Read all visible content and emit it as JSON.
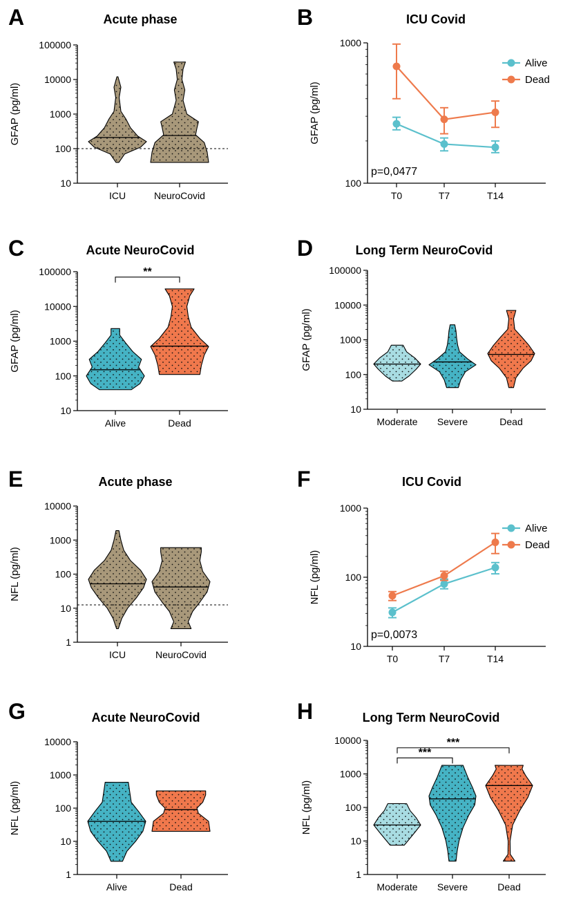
{
  "colors": {
    "tan": "#A8987A",
    "teal": "#45B3C4",
    "light_teal": "#A8DCE2",
    "orange": "#F0784C",
    "line_teal": "#5BC0CC",
    "line_orange": "#EE7A4C"
  },
  "chart_data": [
    {
      "panel": "A",
      "type": "violin",
      "title": "Acute phase",
      "ylabel": "GFAP (pg/ml)",
      "yscale": "log",
      "ylim": [
        10,
        100000
      ],
      "yticks": [
        "10",
        "100",
        "1000",
        "10000",
        "100000"
      ],
      "categories": [
        "ICU",
        "NeuroCovid"
      ],
      "reference_line": 100,
      "groups": [
        {
          "name": "ICU",
          "color": "tan",
          "min": 40,
          "max": 12000,
          "median": 210,
          "profile": [
            [
              40,
              0.05
            ],
            [
              70,
              0.25
            ],
            [
              110,
              0.8
            ],
            [
              160,
              1.0
            ],
            [
              230,
              0.7
            ],
            [
              400,
              0.45
            ],
            [
              700,
              0.3
            ],
            [
              1200,
              0.12
            ],
            [
              3000,
              0.06
            ],
            [
              6000,
              0.12
            ],
            [
              12000,
              0.02
            ]
          ]
        },
        {
          "name": "NeuroCovid",
          "color": "tan",
          "min": 40,
          "max": 32000,
          "median": 240,
          "profile": [
            [
              40,
              1.0
            ],
            [
              80,
              0.95
            ],
            [
              150,
              0.85
            ],
            [
              250,
              0.55
            ],
            [
              400,
              0.6
            ],
            [
              600,
              0.65
            ],
            [
              1000,
              0.25
            ],
            [
              2500,
              0.12
            ],
            [
              5000,
              0.18
            ],
            [
              10000,
              0.08
            ],
            [
              20000,
              0.12
            ],
            [
              32000,
              0.2
            ]
          ]
        }
      ]
    },
    {
      "panel": "B",
      "type": "line",
      "title": "ICU Covid",
      "ylabel": "GFAP (pg/ml)",
      "yscale": "log",
      "ylim": [
        100,
        1000
      ],
      "yticks": [
        "100",
        "1000"
      ],
      "categories": [
        "T0",
        "T7",
        "T14"
      ],
      "annotation": "p=0,0477",
      "legend": "top-right",
      "series": [
        {
          "name": "Alive",
          "color": "line_teal",
          "values": [
            265,
            190,
            180
          ],
          "err_low": [
            240,
            170,
            165
          ],
          "err_high": [
            295,
            210,
            200
          ]
        },
        {
          "name": "Dead",
          "color": "line_orange",
          "values": [
            680,
            285,
            320
          ],
          "err_low": [
            400,
            225,
            250
          ],
          "err_high": [
            980,
            345,
            385
          ]
        }
      ]
    },
    {
      "panel": "C",
      "type": "violin",
      "title": "Acute NeuroCovid",
      "ylabel": "GFAP (pg/ml)",
      "yscale": "log",
      "ylim": [
        10,
        100000
      ],
      "yticks": [
        "10",
        "100",
        "1000",
        "10000",
        "100000"
      ],
      "categories": [
        "Alive",
        "Dead"
      ],
      "significance": [
        {
          "from": 0,
          "to": 1,
          "label": "**",
          "y": 70000
        }
      ],
      "groups": [
        {
          "name": "Alive",
          "color": "teal",
          "min": 40,
          "max": 2300,
          "median": 150,
          "profile": [
            [
              40,
              0.55
            ],
            [
              60,
              0.85
            ],
            [
              100,
              1.0
            ],
            [
              180,
              0.8
            ],
            [
              300,
              0.9
            ],
            [
              500,
              0.6
            ],
            [
              900,
              0.35
            ],
            [
              1500,
              0.15
            ],
            [
              2300,
              0.15
            ]
          ]
        },
        {
          "name": "Dead",
          "color": "orange",
          "min": 110,
          "max": 32000,
          "median": 720,
          "profile": [
            [
              110,
              0.7
            ],
            [
              200,
              0.75
            ],
            [
              400,
              0.85
            ],
            [
              700,
              1.0
            ],
            [
              1200,
              0.7
            ],
            [
              2500,
              0.4
            ],
            [
              5000,
              0.3
            ],
            [
              10000,
              0.25
            ],
            [
              20000,
              0.35
            ],
            [
              32000,
              0.5
            ]
          ]
        }
      ]
    },
    {
      "panel": "D",
      "type": "violin",
      "title": "Long Term NeuroCovid",
      "ylabel": "GFAP (pg/ml)",
      "yscale": "log",
      "ylim": [
        10,
        100000
      ],
      "yticks": [
        "10",
        "100",
        "1000",
        "10000",
        "100000"
      ],
      "categories": [
        "Moderate",
        "Severe",
        "Dead"
      ],
      "groups": [
        {
          "name": "Moderate",
          "color": "light_teal",
          "min": 65,
          "max": 700,
          "median": 200,
          "profile": [
            [
              65,
              0.2
            ],
            [
              90,
              0.5
            ],
            [
              140,
              0.8
            ],
            [
              200,
              1.0
            ],
            [
              300,
              0.75
            ],
            [
              450,
              0.4
            ],
            [
              700,
              0.25
            ]
          ]
        },
        {
          "name": "Severe",
          "color": "teal",
          "min": 42,
          "max": 2700,
          "median": 230,
          "profile": [
            [
              42,
              0.25
            ],
            [
              70,
              0.35
            ],
            [
              120,
              0.55
            ],
            [
              190,
              1.0
            ],
            [
              280,
              0.65
            ],
            [
              450,
              0.3
            ],
            [
              700,
              0.22
            ],
            [
              1100,
              0.18
            ],
            [
              1800,
              0.15
            ],
            [
              2700,
              0.1
            ]
          ]
        },
        {
          "name": "Dead",
          "color": "orange",
          "min": 42,
          "max": 7000,
          "median": 380,
          "profile": [
            [
              42,
              0.1
            ],
            [
              80,
              0.2
            ],
            [
              150,
              0.5
            ],
            [
              250,
              0.85
            ],
            [
              400,
              1.0
            ],
            [
              700,
              0.75
            ],
            [
              1200,
              0.45
            ],
            [
              2000,
              0.15
            ],
            [
              4000,
              0.1
            ],
            [
              7000,
              0.2
            ]
          ]
        }
      ]
    },
    {
      "panel": "E",
      "type": "violin",
      "title": "Acute phase",
      "ylabel": "NFL (pg/ml)",
      "yscale": "log",
      "ylim": [
        1,
        10000
      ],
      "yticks": [
        "1",
        "10",
        "100",
        "1000",
        "10000"
      ],
      "categories": [
        "ICU",
        "NeuroCovid"
      ],
      "reference_line": 12.5,
      "groups": [
        {
          "name": "ICU",
          "color": "tan",
          "min": 2.5,
          "max": 1900,
          "median": 52,
          "profile": [
            [
              2.5,
              0.03
            ],
            [
              5,
              0.15
            ],
            [
              10,
              0.35
            ],
            [
              20,
              0.65
            ],
            [
              40,
              0.9
            ],
            [
              70,
              1.0
            ],
            [
              130,
              0.8
            ],
            [
              250,
              0.45
            ],
            [
              500,
              0.22
            ],
            [
              1000,
              0.12
            ],
            [
              1900,
              0.05
            ]
          ]
        },
        {
          "name": "NeuroCovid",
          "color": "tan",
          "min": 2.5,
          "max": 600,
          "median": 42,
          "profile": [
            [
              2.5,
              0.35
            ],
            [
              4,
              0.25
            ],
            [
              8,
              0.4
            ],
            [
              15,
              0.65
            ],
            [
              30,
              0.9
            ],
            [
              60,
              1.0
            ],
            [
              120,
              0.75
            ],
            [
              250,
              0.65
            ],
            [
              450,
              0.7
            ],
            [
              600,
              0.7
            ]
          ]
        }
      ]
    },
    {
      "panel": "F",
      "type": "line",
      "title": "ICU Covid",
      "ylabel": "NFL (pg/ml)",
      "yscale": "log",
      "ylim": [
        10,
        1000
      ],
      "yticks": [
        "10",
        "100",
        "1000"
      ],
      "categories": [
        "T0",
        "T7",
        "T14"
      ],
      "annotation": "p=0,0073",
      "legend": "top-right",
      "series": [
        {
          "name": "Alive",
          "color": "line_teal",
          "values": [
            31,
            80,
            138
          ],
          "err_low": [
            26,
            68,
            112
          ],
          "err_high": [
            36,
            94,
            163
          ]
        },
        {
          "name": "Dead",
          "color": "line_orange",
          "values": [
            54,
            105,
            320
          ],
          "err_low": [
            46,
            90,
            220
          ],
          "err_high": [
            62,
            122,
            430
          ]
        }
      ]
    },
    {
      "panel": "G",
      "type": "violin",
      "title": "Acute NeuroCovid",
      "ylabel": "NFL (pg/ml)",
      "yscale": "log",
      "ylim": [
        1,
        10000
      ],
      "yticks": [
        "1",
        "10",
        "100",
        "1000",
        "10000"
      ],
      "categories": [
        "Alive",
        "Dead"
      ],
      "groups": [
        {
          "name": "Alive",
          "color": "teal",
          "min": 2.5,
          "max": 600,
          "median": 40,
          "profile": [
            [
              2.5,
              0.2
            ],
            [
              5,
              0.35
            ],
            [
              10,
              0.65
            ],
            [
              20,
              0.9
            ],
            [
              40,
              1.0
            ],
            [
              80,
              0.75
            ],
            [
              150,
              0.5
            ],
            [
              300,
              0.45
            ],
            [
              600,
              0.4
            ]
          ]
        },
        {
          "name": "Dead",
          "color": "orange",
          "min": 20,
          "max": 330,
          "median": 90,
          "profile": [
            [
              20,
              1.0
            ],
            [
              40,
              0.95
            ],
            [
              70,
              0.6
            ],
            [
              100,
              0.55
            ],
            [
              150,
              0.75
            ],
            [
              250,
              0.85
            ],
            [
              330,
              0.85
            ]
          ]
        }
      ]
    },
    {
      "panel": "H",
      "type": "violin",
      "title": "Long Term NeuroCovid",
      "ylabel": "NFL (pg/ml)",
      "yscale": "log",
      "ylim": [
        1,
        10000
      ],
      "yticks": [
        "1",
        "10",
        "100",
        "1000",
        "10000"
      ],
      "categories": [
        "Moderate",
        "Severe",
        "Dead"
      ],
      "significance": [
        {
          "from": 0,
          "to": 1,
          "label": "***",
          "y": 3000
        },
        {
          "from": 0,
          "to": 2,
          "label": "***",
          "y": 6000
        }
      ],
      "groups": [
        {
          "name": "Moderate",
          "color": "light_teal",
          "min": 7.5,
          "max": 130,
          "median": 30,
          "profile": [
            [
              7.5,
              0.3
            ],
            [
              10,
              0.45
            ],
            [
              18,
              0.75
            ],
            [
              30,
              1.0
            ],
            [
              50,
              0.8
            ],
            [
              80,
              0.55
            ],
            [
              130,
              0.4
            ]
          ]
        },
        {
          "name": "Severe",
          "color": "teal",
          "min": 2.5,
          "max": 1800,
          "median": 180,
          "profile": [
            [
              2.5,
              0.15
            ],
            [
              5,
              0.2
            ],
            [
              10,
              0.28
            ],
            [
              25,
              0.45
            ],
            [
              60,
              0.7
            ],
            [
              120,
              0.95
            ],
            [
              220,
              1.0
            ],
            [
              400,
              0.85
            ],
            [
              800,
              0.65
            ],
            [
              1800,
              0.45
            ]
          ]
        },
        {
          "name": "Dead",
          "color": "orange",
          "min": 2.5,
          "max": 1800,
          "median": 450,
          "profile": [
            [
              2.5,
              0.25
            ],
            [
              4,
              0.05
            ],
            [
              10,
              0.04
            ],
            [
              30,
              0.15
            ],
            [
              80,
              0.45
            ],
            [
              200,
              0.8
            ],
            [
              450,
              1.0
            ],
            [
              900,
              0.7
            ],
            [
              1400,
              0.55
            ],
            [
              1800,
              0.6
            ]
          ]
        }
      ]
    }
  ]
}
